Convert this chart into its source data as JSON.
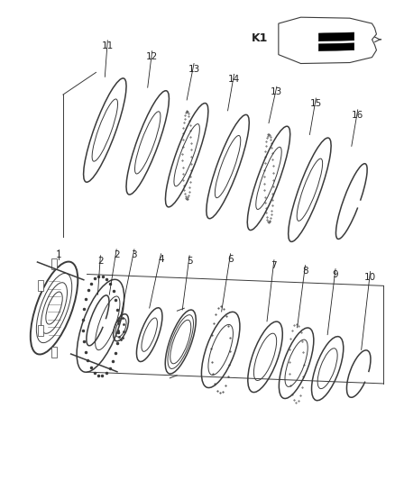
{
  "background_color": "#ffffff",
  "line_color": "#3a3a3a",
  "label_color": "#222222",
  "fig_width": 4.38,
  "fig_height": 5.33,
  "dpi": 100,
  "upper_parts": [
    {
      "id": "1",
      "type": "drum"
    },
    {
      "id": "2a",
      "type": "snap_ring"
    },
    {
      "id": "2b",
      "type": "ring_thin"
    },
    {
      "id": "3",
      "type": "needle_bearing"
    },
    {
      "id": "4",
      "type": "ring_thin"
    },
    {
      "id": "5",
      "type": "hub_cylinder"
    },
    {
      "id": "6",
      "type": "toothed_ring"
    },
    {
      "id": "7",
      "type": "large_ring"
    },
    {
      "id": "8",
      "type": "bearing_race"
    },
    {
      "id": "9",
      "type": "ring_medium"
    },
    {
      "id": "10",
      "type": "snap_ring_small"
    }
  ],
  "lower_parts": [
    {
      "id": "11",
      "type": "plain_disc"
    },
    {
      "id": "12",
      "type": "plain_disc"
    },
    {
      "id": "13",
      "type": "toothed_disc"
    },
    {
      "id": "14",
      "type": "plain_disc"
    },
    {
      "id": "13b",
      "type": "toothed_disc"
    },
    {
      "id": "15",
      "type": "plain_disc"
    },
    {
      "id": "16",
      "type": "snap_ring_disc"
    }
  ]
}
